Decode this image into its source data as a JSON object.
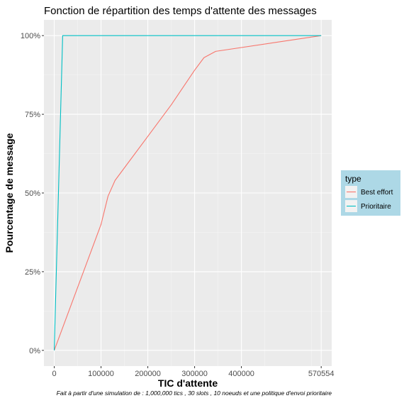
{
  "chart_data": {
    "type": "line",
    "title": "Fonction de répartition des temps d'attente des messages",
    "xlabel": "TIC d'attente",
    "ylabel": "Pourcentage de message",
    "caption": "Fait à partir d'une simulation de : 1,000,000 tics , 30 slots , 10 noeuds et une politique d'envoi prioritaire",
    "xlim": [
      -22000,
      593000
    ],
    "ylim": [
      -0.05,
      1.05
    ],
    "x_ticks": [
      0,
      100000,
      200000,
      300000,
      400000,
      570554
    ],
    "x_tick_labels": [
      "0",
      "100000",
      "200000",
      "300000",
      "400000",
      "570554"
    ],
    "y_ticks": [
      0,
      0.25,
      0.5,
      0.75,
      1.0
    ],
    "y_tick_labels": [
      "0%",
      "25%",
      "50%",
      "75%",
      "100%"
    ],
    "grid": true,
    "legend": {
      "title": "type",
      "position": "right",
      "background": "#add8e6"
    },
    "series": [
      {
        "name": "Best effort",
        "color": "#F8766D",
        "x": [
          0,
          50000,
          100000,
          115000,
          130000,
          160000,
          200000,
          250000,
          300000,
          320000,
          345000,
          570554
        ],
        "y": [
          0,
          0.2,
          0.4,
          0.49,
          0.54,
          0.6,
          0.68,
          0.78,
          0.89,
          0.93,
          0.95,
          1.0
        ]
      },
      {
        "name": "Prioritaire",
        "color": "#00BFC4",
        "x": [
          0,
          18000,
          570554
        ],
        "y": [
          0,
          1.0,
          1.0
        ]
      }
    ]
  }
}
